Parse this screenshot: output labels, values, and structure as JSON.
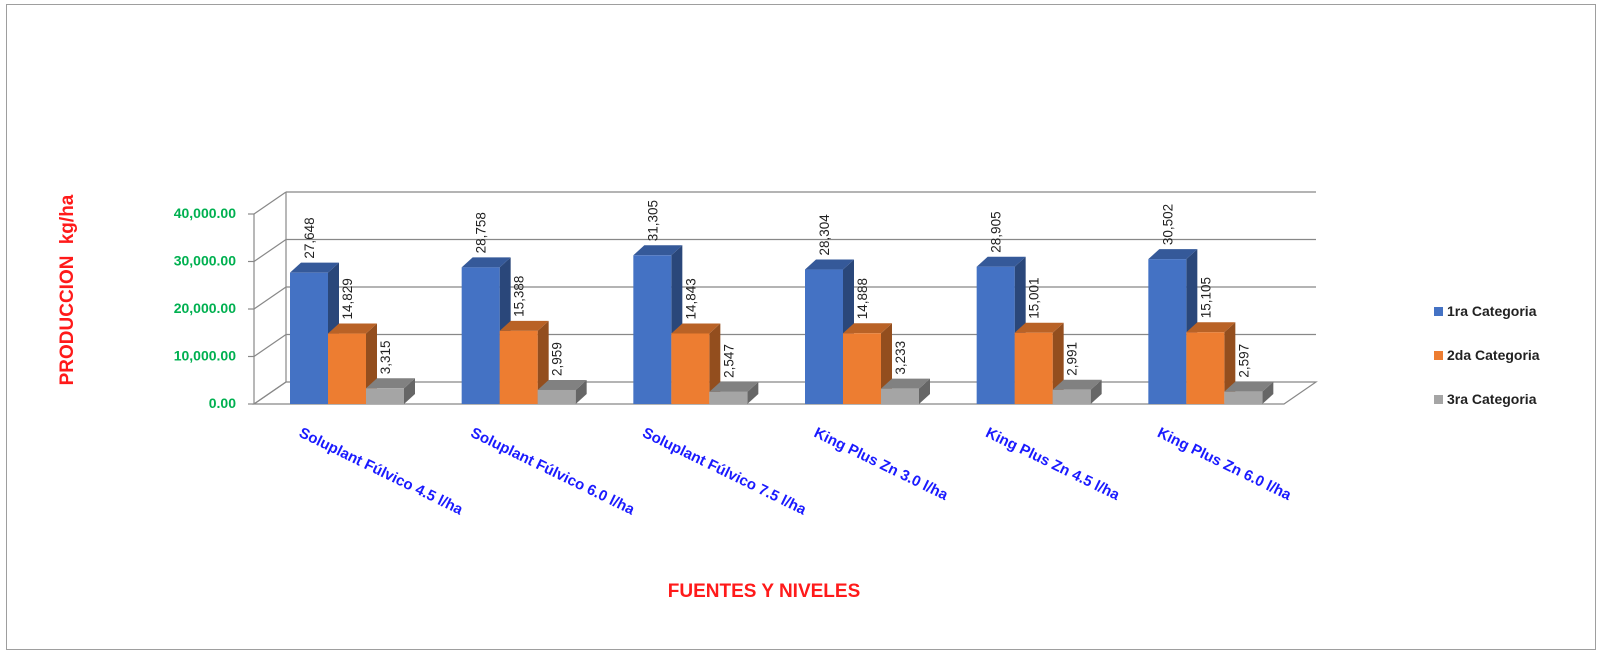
{
  "chart_data": {
    "type": "bar",
    "ylabel": "PRODUCCION   kg/ha",
    "xlabel": "FUENTES Y NIVELES",
    "ylim": [
      0,
      40000
    ],
    "yticks": [
      "0.00",
      "10,000.00",
      "20,000.00",
      "30,000.00",
      "40,000.00"
    ],
    "ytick_values": [
      0,
      10000,
      20000,
      30000,
      40000
    ],
    "categories": [
      "Soluplant Fúlvico 4.5 l/ha",
      "Soluplant Fúlvico 6.0 l/ha",
      "Soluplant Fúlvico 7.5 l/ha",
      "King Plus Zn 3.0 l/ha",
      "King Plus Zn 4.5 l/ha",
      "King Plus Zn 6.0 l/ha"
    ],
    "series": [
      {
        "name": "1ra Categoria",
        "color": "#4472c4",
        "values": [
          27648,
          28758,
          31305,
          28304,
          28905,
          30502
        ],
        "labels": [
          "27,648",
          "28,758",
          "31,305",
          "28,304",
          "28,905",
          "30,502"
        ]
      },
      {
        "name": "2da Categoria",
        "color": "#ed7d31",
        "values": [
          14829,
          15388,
          14843,
          14888,
          15001,
          15105
        ],
        "labels": [
          "14,829",
          "15,388",
          "14,843",
          "14,888",
          "15,001",
          "15,105"
        ]
      },
      {
        "name": "3ra Categoria",
        "color": "#a5a5a5",
        "values": [
          3315,
          2959,
          2547,
          3233,
          2991,
          2597
        ],
        "labels": [
          "3,315",
          "2,959",
          "2,547",
          "3,233",
          "2,991",
          "2,597"
        ]
      }
    ],
    "grid": true,
    "legend_position": "right",
    "ytick_color": "#00b050",
    "xtick_color": "#1a1aff",
    "axis_title_color": "#ff1a1a"
  }
}
